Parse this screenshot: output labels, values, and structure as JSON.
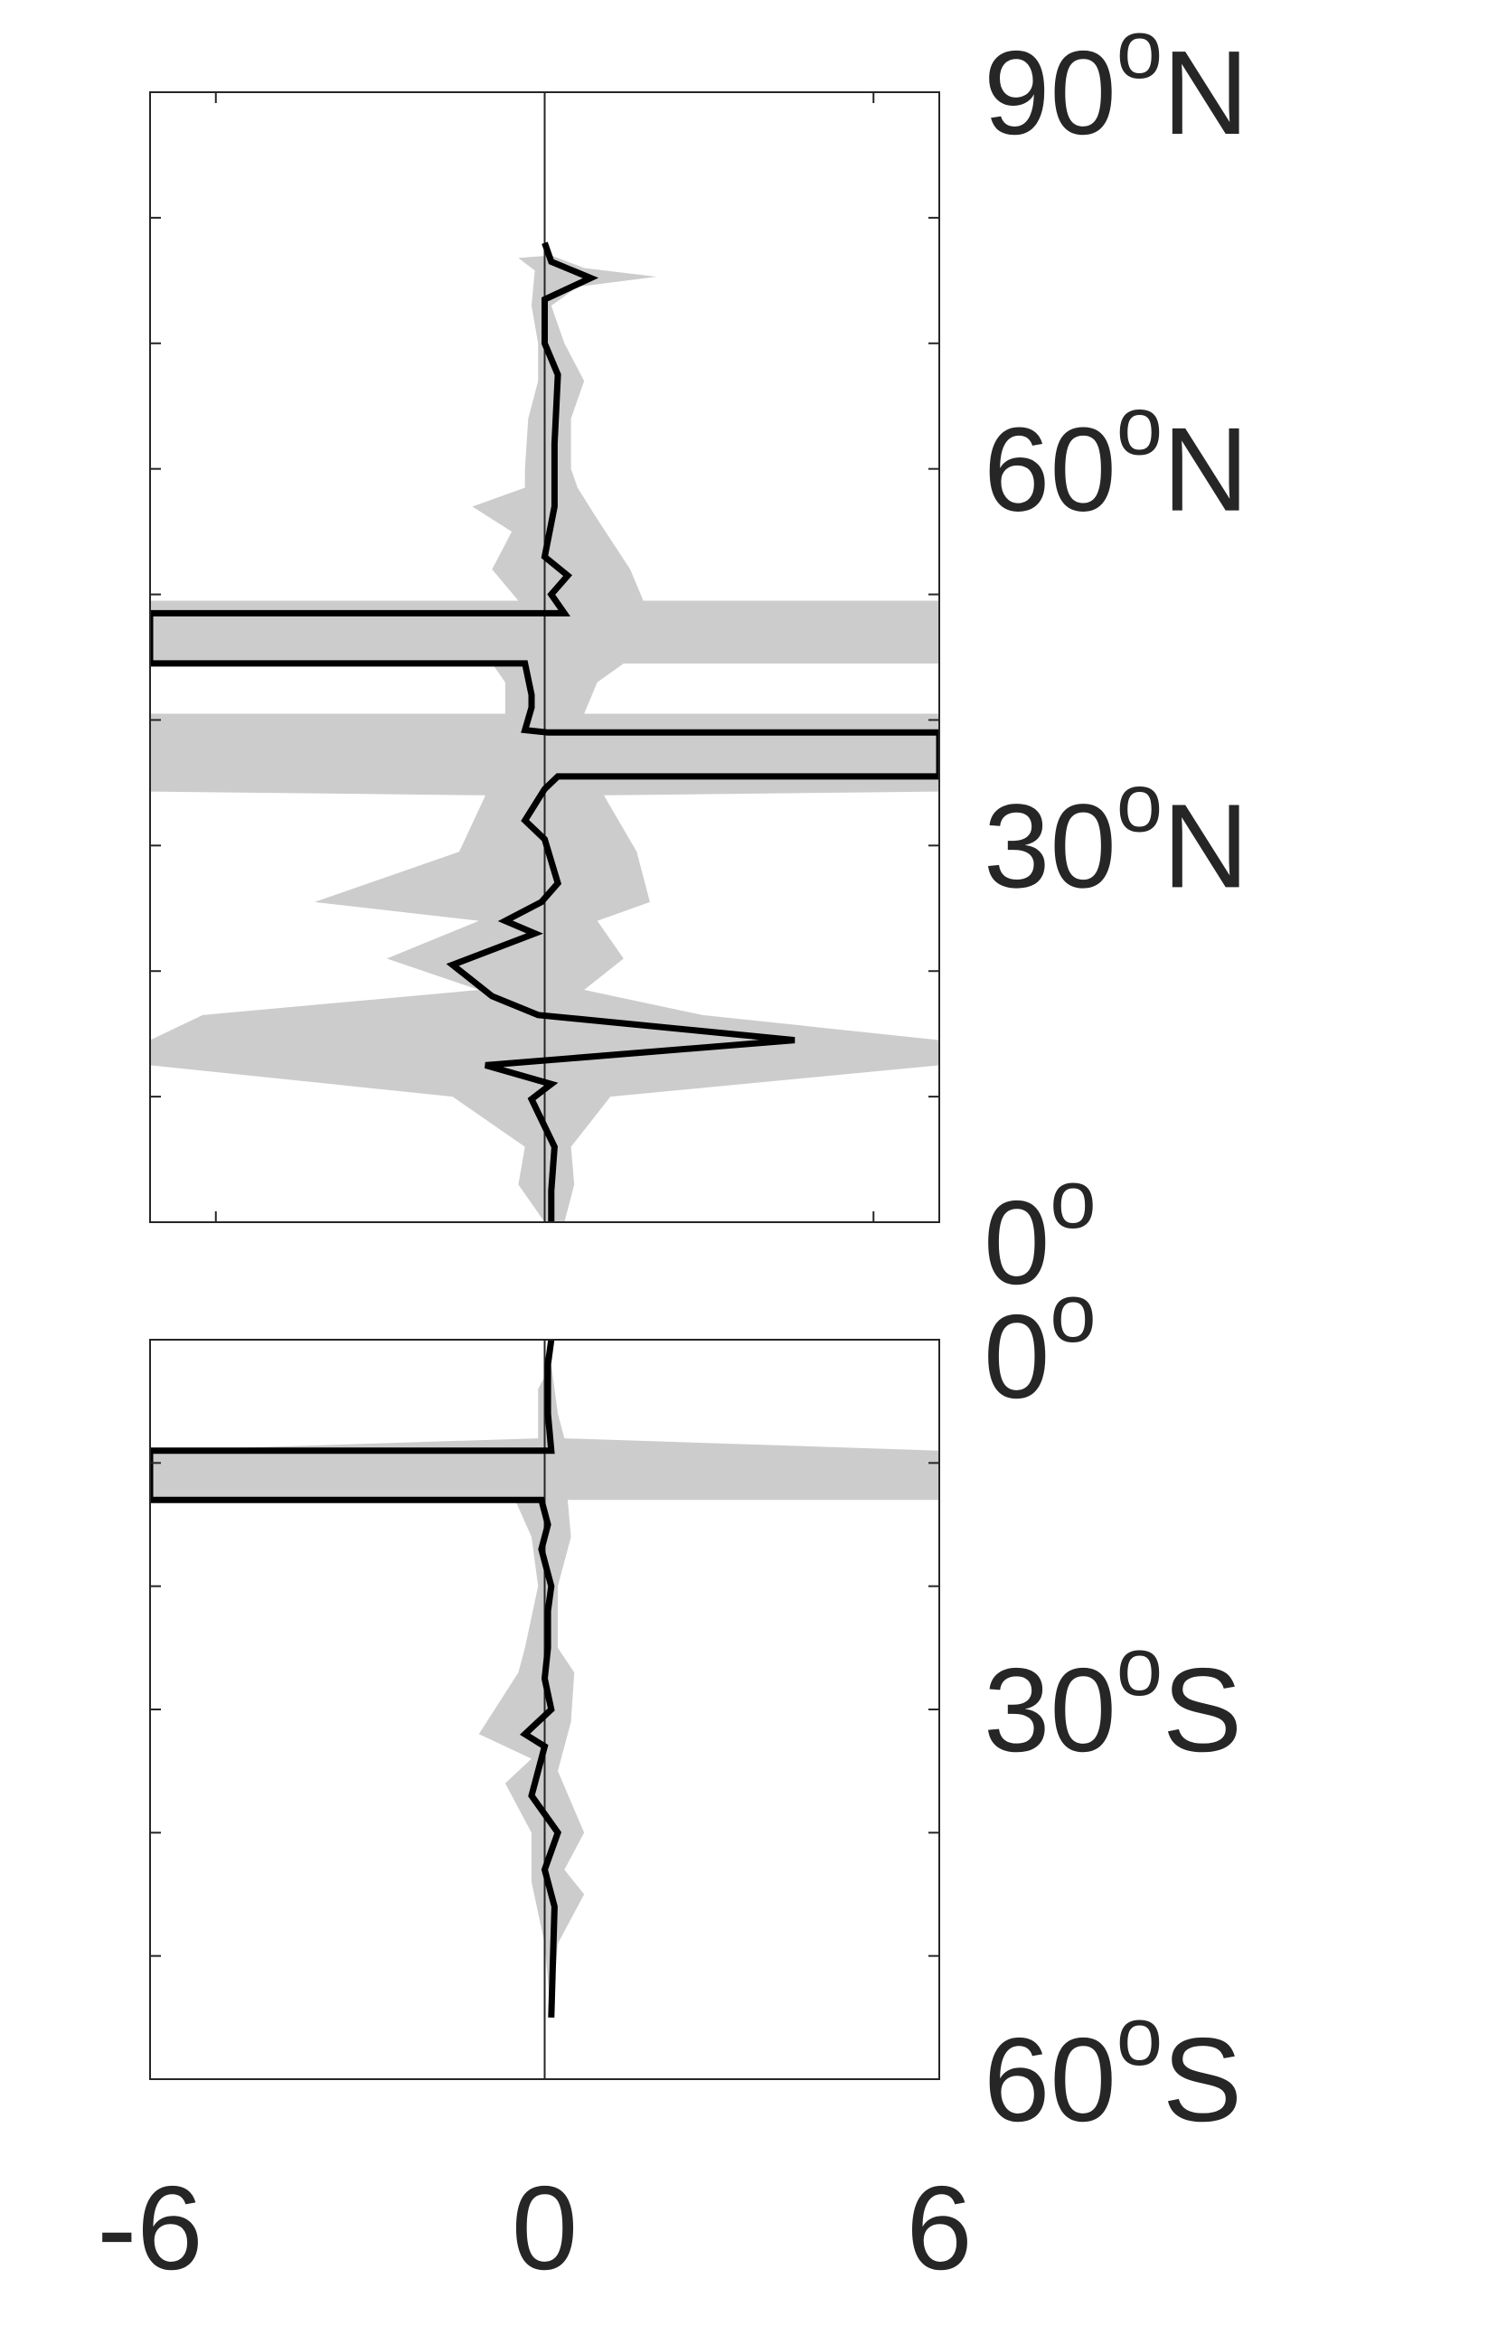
{
  "colors": {
    "background": "#ffffff",
    "axis": "#262626",
    "mean_line": "#000000",
    "spread_band": "#cccccc"
  },
  "chart_data": [
    {
      "type": "line",
      "panel": "northern-hemisphere",
      "orientation": "profile (latitude on vertical axis, value on horizontal axis)",
      "xlim": [
        -6,
        6
      ],
      "ylim": [
        0,
        90
      ],
      "x_ticks": [
        -5,
        0,
        5
      ],
      "y_ticks": [
        0,
        10,
        20,
        30,
        40,
        50,
        60,
        70,
        80,
        90
      ],
      "grid": false,
      "zero_line": true,
      "lat_labels": [
        {
          "lat": 90,
          "num": "90",
          "sup": "o",
          "hemi": "N"
        },
        {
          "lat": 60,
          "num": "60",
          "sup": "o",
          "hemi": "N"
        },
        {
          "lat": 30,
          "num": "30",
          "sup": "o",
          "hemi": "N"
        },
        {
          "lat": 0,
          "num": "0",
          "sup": "o",
          "hemi": ""
        }
      ],
      "series": [
        {
          "role": "mean",
          "points": [
            [
              0.0,
              78
            ],
            [
              0.1,
              76.5
            ],
            [
              0.7,
              75.2
            ],
            [
              0.0,
              73.5
            ],
            [
              0.0,
              70
            ],
            [
              0.2,
              67.5
            ],
            [
              0.15,
              62
            ],
            [
              0.15,
              57
            ],
            [
              0.0,
              53
            ],
            [
              0.35,
              51.5
            ],
            [
              0.1,
              50
            ],
            [
              0.3,
              48.5
            ],
            [
              -6,
              48.5
            ],
            [
              -6,
              46.5
            ],
            [
              -6,
              44.5
            ],
            [
              -0.3,
              44.5
            ],
            [
              -0.2,
              42
            ],
            [
              -0.2,
              41
            ],
            [
              -0.3,
              39.2
            ],
            [
              0.05,
              39
            ],
            [
              6,
              39
            ],
            [
              6,
              37
            ],
            [
              6,
              35.5
            ],
            [
              0.2,
              35.5
            ],
            [
              0.0,
              34.5
            ],
            [
              -0.3,
              32
            ],
            [
              0.0,
              30.5
            ],
            [
              0.2,
              27
            ],
            [
              -0.05,
              25.5
            ],
            [
              -0.6,
              24
            ],
            [
              -0.15,
              23
            ],
            [
              -1.4,
              20.5
            ],
            [
              -0.8,
              18
            ],
            [
              -0.1,
              16.5
            ],
            [
              3.8,
              14.5
            ],
            [
              -0.9,
              12.5
            ],
            [
              0.1,
              11
            ],
            [
              -0.2,
              9.8
            ],
            [
              0.15,
              6
            ],
            [
              0.1,
              2.5
            ],
            [
              0.1,
              0
            ]
          ]
        },
        {
          "role": "spread",
          "upper": [
            [
              0.1,
              77
            ],
            [
              0.6,
              76
            ],
            [
              1.7,
              75.3
            ],
            [
              0.5,
              74.5
            ],
            [
              0.1,
              73
            ],
            [
              0.3,
              70
            ],
            [
              0.6,
              67
            ],
            [
              0.4,
              64
            ],
            [
              0.4,
              60
            ],
            [
              0.5,
              58.5
            ],
            [
              0.8,
              56
            ],
            [
              1.3,
              52
            ],
            [
              1.5,
              49.5
            ],
            [
              6,
              49.5
            ],
            [
              6,
              46.5
            ],
            [
              6,
              44.5
            ],
            [
              1.2,
              44.5
            ],
            [
              0.8,
              43
            ],
            [
              0.6,
              40.5
            ],
            [
              6,
              40.5
            ],
            [
              6,
              37.5
            ],
            [
              6,
              35
            ],
            [
              6,
              34.3
            ],
            [
              0.9,
              34
            ],
            [
              1.4,
              29.5
            ],
            [
              1.6,
              25.5
            ],
            [
              0.8,
              24
            ],
            [
              1.2,
              21
            ],
            [
              0.6,
              18.5
            ],
            [
              2.4,
              16.5
            ],
            [
              6,
              14.5
            ],
            [
              6,
              12.5
            ],
            [
              1.0,
              10
            ],
            [
              0.4,
              6
            ],
            [
              0.45,
              3
            ],
            [
              0.3,
              0
            ]
          ],
          "lower": [
            [
              0.1,
              77
            ],
            [
              -0.4,
              76.8
            ],
            [
              -0.15,
              75.8
            ],
            [
              -0.2,
              73
            ],
            [
              -0.1,
              70
            ],
            [
              -0.1,
              67
            ],
            [
              -0.25,
              64
            ],
            [
              -0.3,
              60
            ],
            [
              -0.3,
              58.5
            ],
            [
              -1.1,
              57
            ],
            [
              -0.5,
              55
            ],
            [
              -0.8,
              52
            ],
            [
              -0.4,
              49.5
            ],
            [
              -6,
              49.5
            ],
            [
              -6,
              46.5
            ],
            [
              -6,
              44.5
            ],
            [
              -0.8,
              44.5
            ],
            [
              -0.6,
              43
            ],
            [
              -0.6,
              40.5
            ],
            [
              -6,
              40.5
            ],
            [
              -6,
              37.5
            ],
            [
              -6,
              35
            ],
            [
              -6,
              34.3
            ],
            [
              -0.9,
              34
            ],
            [
              -1.3,
              29.5
            ],
            [
              -3.5,
              25.5
            ],
            [
              -1.0,
              24
            ],
            [
              -2.4,
              21
            ],
            [
              -1.0,
              18.5
            ],
            [
              -5.2,
              16.5
            ],
            [
              -6,
              14.5
            ],
            [
              -6,
              12.5
            ],
            [
              -1.4,
              10
            ],
            [
              -0.3,
              6
            ],
            [
              -0.4,
              3
            ],
            [
              0.0,
              0
            ]
          ]
        }
      ]
    },
    {
      "type": "line",
      "panel": "southern-hemisphere",
      "orientation": "profile (latitude on vertical axis, value on horizontal axis)",
      "xlim": [
        -6,
        6
      ],
      "ylim": [
        -60,
        0
      ],
      "x_ticks": [
        -6,
        0,
        6
      ],
      "x_tick_labels": [
        "-6",
        "0",
        "6"
      ],
      "y_ticks": [
        -10,
        -20,
        -30,
        -40,
        -50
      ],
      "grid": false,
      "zero_line": true,
      "lat_labels": [
        {
          "lat": 0,
          "num": "0",
          "sup": "o",
          "hemi": ""
        },
        {
          "lat": -30,
          "num": "30",
          "sup": "o",
          "hemi": "S"
        },
        {
          "lat": -60,
          "num": "60",
          "sup": "o",
          "hemi": "S"
        }
      ],
      "series": [
        {
          "role": "mean",
          "points": [
            [
              0.1,
              0
            ],
            [
              0.05,
              -2
            ],
            [
              0.05,
              -6
            ],
            [
              0.1,
              -9
            ],
            [
              -6,
              -9
            ],
            [
              -6,
              -11
            ],
            [
              -6,
              -13
            ],
            [
              -0.05,
              -13
            ],
            [
              0.05,
              -15
            ],
            [
              -0.05,
              -17
            ],
            [
              0.1,
              -20
            ],
            [
              0.05,
              -22
            ],
            [
              0.05,
              -25
            ],
            [
              0.0,
              -27.5
            ],
            [
              0.1,
              -30
            ],
            [
              -0.3,
              -32
            ],
            [
              0.0,
              -33
            ],
            [
              -0.2,
              -37
            ],
            [
              0.2,
              -40
            ],
            [
              0.0,
              -43
            ],
            [
              0.15,
              -46
            ],
            [
              0.1,
              -55
            ]
          ]
        },
        {
          "role": "spread",
          "upper": [
            [
              0.1,
              -2
            ],
            [
              0.15,
              -4
            ],
            [
              0.2,
              -6
            ],
            [
              0.3,
              -8
            ],
            [
              6,
              -9
            ],
            [
              6,
              -11
            ],
            [
              6,
              -13
            ],
            [
              0.35,
              -13
            ],
            [
              0.4,
              -16
            ],
            [
              0.2,
              -20
            ],
            [
              0.2,
              -25
            ],
            [
              0.45,
              -27
            ],
            [
              0.4,
              -31
            ],
            [
              0.2,
              -35
            ],
            [
              0.6,
              -40
            ],
            [
              0.3,
              -43
            ],
            [
              0.6,
              -45
            ],
            [
              0.2,
              -49
            ],
            [
              0.1,
              -55
            ]
          ],
          "lower": [
            [
              0.1,
              -2
            ],
            [
              -0.1,
              -4
            ],
            [
              -0.1,
              -6
            ],
            [
              -0.1,
              -8
            ],
            [
              -6,
              -9
            ],
            [
              -6,
              -11
            ],
            [
              -6,
              -13
            ],
            [
              -0.45,
              -13
            ],
            [
              -0.2,
              -16
            ],
            [
              -0.1,
              -20
            ],
            [
              -0.3,
              -25
            ],
            [
              -0.4,
              -27
            ],
            [
              -1.0,
              -32
            ],
            [
              -0.2,
              -34
            ],
            [
              -0.6,
              -36
            ],
            [
              -0.2,
              -40
            ],
            [
              -0.2,
              -44
            ],
            [
              0.0,
              -49
            ],
            [
              0.1,
              -55
            ]
          ]
        }
      ]
    }
  ]
}
